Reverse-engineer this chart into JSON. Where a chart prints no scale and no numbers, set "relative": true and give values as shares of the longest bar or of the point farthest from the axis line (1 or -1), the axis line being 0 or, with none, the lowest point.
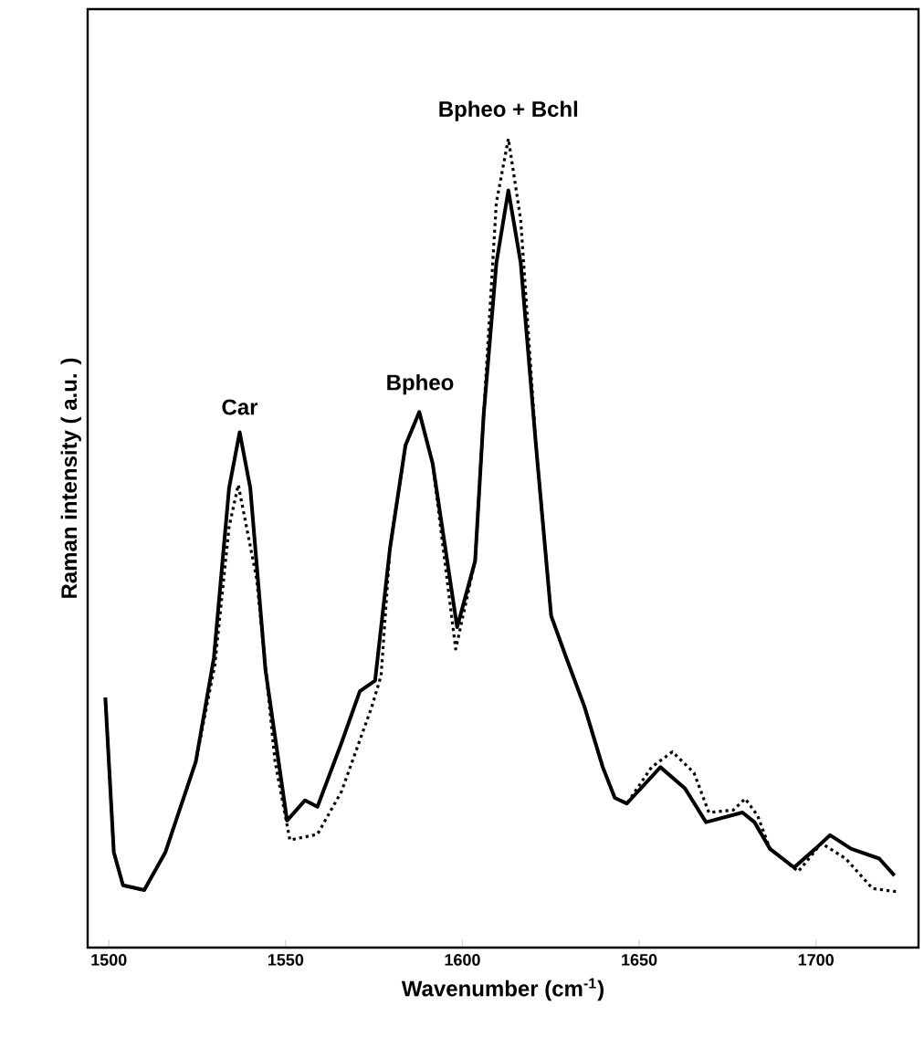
{
  "chart_data": {
    "type": "line",
    "relative": true,
    "xlabel": "Wavenumber (cm$^{-1}$)",
    "ylabel": "Raman intensity ( a.u. )",
    "xlim": [
      1494,
      1729
    ],
    "xticks": [
      1500,
      1550,
      1600,
      1650,
      1700
    ],
    "grid": false,
    "marker": "none",
    "annotations": [
      {
        "text": "Car",
        "x": 1537,
        "y": 0.637
      },
      {
        "text": "Bpheo",
        "x": 1588,
        "y": 0.662
      },
      {
        "text": "Bpheo + Bchl",
        "x": 1613,
        "y": 1.0
      }
    ],
    "series": [
      {
        "color": "#000000",
        "line_style": "solid",
        "x": [
          1499,
          1501.4,
          1504,
          1510,
          1516,
          1524.6,
          1529.7,
          1534,
          1537,
          1540,
          1544.3,
          1550.4,
          1555.5,
          1559,
          1565.8,
          1571,
          1575.3,
          1579.5,
          1583.9,
          1587.8,
          1591.6,
          1598.5,
          1603.6,
          1606,
          1609.6,
          1613,
          1616.5,
          1620.8,
          1625.1,
          1629.4,
          1634.5,
          1639.7,
          1643.1,
          1646.5,
          1656,
          1662.9,
          1668.9,
          1679.2,
          1682.6,
          1687,
          1693.8,
          1699.8,
          1704,
          1710,
          1717.9,
          1722.2
        ],
        "values": [
          0.309,
          0.118,
          0.077,
          0.071,
          0.118,
          0.23,
          0.358,
          0.568,
          0.637,
          0.568,
          0.343,
          0.157,
          0.182,
          0.174,
          0.253,
          0.317,
          0.33,
          0.493,
          0.621,
          0.662,
          0.598,
          0.396,
          0.478,
          0.658,
          0.846,
          0.936,
          0.846,
          0.621,
          0.41,
          0.358,
          0.298,
          0.223,
          0.185,
          0.178,
          0.223,
          0.197,
          0.155,
          0.167,
          0.155,
          0.122,
          0.099,
          0.122,
          0.139,
          0.122,
          0.11,
          0.089
        ]
      },
      {
        "color": "#000000",
        "line_style": "dotted",
        "x": [
          1499,
          1501.4,
          1504,
          1510,
          1516,
          1524.6,
          1530,
          1534,
          1536.6,
          1541.8,
          1547,
          1551.2,
          1559,
          1565.8,
          1574.4,
          1577,
          1579.5,
          1583.9,
          1587.8,
          1591.6,
          1598.1,
          1603.6,
          1606,
          1609.6,
          1613,
          1616.5,
          1620.8,
          1625.1,
          1629.4,
          1634.5,
          1639.7,
          1643.1,
          1646.5,
          1653.5,
          1659.4,
          1665.5,
          1669.7,
          1676.6,
          1680,
          1683.5,
          1687,
          1695,
          1701.5,
          1708.4,
          1716,
          1723
        ],
        "values": [
          0.309,
          0.118,
          0.077,
          0.071,
          0.118,
          0.23,
          0.35,
          0.52,
          0.572,
          0.456,
          0.23,
          0.133,
          0.14,
          0.193,
          0.298,
          0.336,
          0.493,
          0.621,
          0.662,
          0.598,
          0.369,
          0.478,
          0.658,
          0.921,
          1.0,
          0.899,
          0.621,
          0.41,
          0.358,
          0.298,
          0.223,
          0.185,
          0.178,
          0.223,
          0.242,
          0.216,
          0.167,
          0.17,
          0.184,
          0.163,
          0.122,
          0.094,
          0.129,
          0.11,
          0.073,
          0.069
        ]
      }
    ]
  }
}
